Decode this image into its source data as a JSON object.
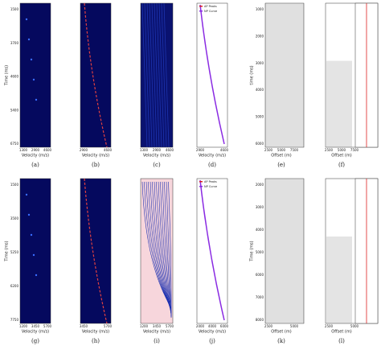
{
  "panels": [
    {
      "label": "(a)",
      "ylabel": "Time (ms)",
      "yticks": [
        "1500",
        "3700",
        "4600",
        "5400",
        "6750"
      ],
      "xticks": [
        "1300",
        "2900",
        "4600"
      ],
      "xlabel": "Velocity (m/s)"
    },
    {
      "label": "(b)",
      "xticks": [
        "2900",
        "4600"
      ],
      "xlabel": "Velocity (m/s)"
    },
    {
      "label": "(c)",
      "xticks": [
        "1300",
        "2900",
        "4600"
      ],
      "xlabel": "Velocity (m/s)"
    },
    {
      "label": "(d)",
      "xticks": [
        "2900",
        "4600"
      ],
      "xlabel": "Velocity (m/s)",
      "legend": [
        "AP Peaks",
        "NP Curve"
      ]
    },
    {
      "label": "(e)",
      "ylabel": "time (ms)",
      "yticks": [
        "1000",
        "2000",
        "3000",
        "4000",
        "5000",
        "6000"
      ],
      "xticks": [
        "2500",
        "5000",
        "7500"
      ],
      "xlabel": "Offset (m)"
    },
    {
      "label": "(f)",
      "xticks": [
        "2500",
        "5000",
        "7500"
      ],
      "xlabel": "Offset (m)"
    },
    {
      "label": "(g)",
      "ylabel": "Time (ms)",
      "yticks": [
        "1500",
        "3500",
        "5250",
        "6200",
        "7750"
      ],
      "xticks": [
        "1200",
        "3450",
        "5700"
      ],
      "xlabel": "Velocity (m/s)"
    },
    {
      "label": "(h)",
      "xticks": [
        "3450",
        "5700"
      ],
      "xlabel": "Velocity (m/s)"
    },
    {
      "label": "(i)",
      "xticks": [
        "1200",
        "3450",
        "5700"
      ],
      "xlabel": "Velocity (m/s)"
    },
    {
      "label": "(j)",
      "xticks": [
        "2000",
        "4000",
        "6000"
      ],
      "xlabel": "Velocity (m/s)",
      "legend": [
        "AP Peaks",
        "NP Curve"
      ]
    },
    {
      "label": "(k)",
      "ylabel": "Time (ms)",
      "yticks": [
        "2000",
        "3000",
        "4000",
        "5000",
        "6000",
        "7000",
        "8000"
      ],
      "xticks": [
        "2500",
        "5000"
      ],
      "xlabel": "Offset (m)"
    },
    {
      "label": "(l)",
      "xticks": [
        "2500",
        "5000"
      ],
      "xlabel": "Offset (m)"
    }
  ]
}
